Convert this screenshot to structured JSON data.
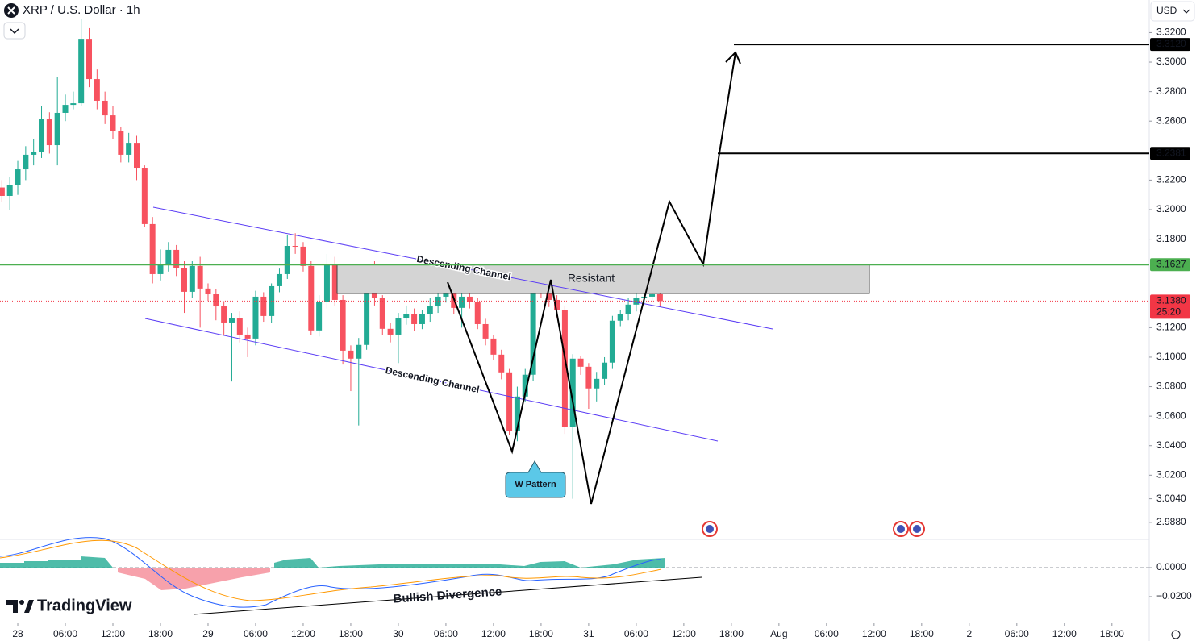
{
  "header": {
    "symbol_title": "XRP / U.S. Dollar · 1h",
    "currency": "USD",
    "brand": "TradingView"
  },
  "annotations": {
    "upper_channel": "Descending Channel",
    "lower_channel": "Descending Channel",
    "zone": "Resistant",
    "pattern": "W Pattern",
    "divergence": "Bullish Divergence"
  },
  "chart_data": {
    "type": "candlestick",
    "up_color": "#22ab94",
    "down_color": "#f7525f",
    "x": [
      -2,
      -1,
      0,
      1,
      2,
      3,
      4,
      5,
      6,
      7,
      8,
      9,
      10,
      11,
      12,
      13,
      14,
      15,
      16,
      17,
      18,
      19,
      20,
      21,
      22,
      23,
      24,
      25,
      26,
      27,
      28,
      29,
      30,
      31,
      32,
      33,
      34,
      35,
      36,
      37,
      38,
      39,
      40,
      41,
      42,
      43,
      44,
      45,
      46,
      47,
      48,
      49,
      50,
      51,
      52,
      53,
      54,
      55,
      56,
      57,
      58,
      59,
      60,
      61,
      62,
      63,
      64,
      65,
      66,
      67,
      68,
      69,
      70,
      71,
      72,
      73,
      74,
      75,
      76,
      77,
      78,
      79,
      80,
      81
    ],
    "open": [
      3.215,
      3.2093,
      3.2164,
      3.2273,
      3.2372,
      3.2393,
      3.2612,
      3.2437,
      3.2656,
      3.271,
      3.2721,
      3.3158,
      3.2885,
      3.2738,
      3.2639,
      3.2535,
      3.2372,
      3.2453,
      3.2284,
      3.1902,
      3.1563,
      3.1629,
      3.1727,
      3.1601,
      3.1443,
      3.1618,
      3.1465,
      3.1426,
      3.1344,
      3.1235,
      3.1262,
      3.1153,
      3.1126,
      3.141,
      3.1279,
      3.1481,
      3.1563,
      3.1754,
      3.1749,
      3.1618,
      3.1181,
      3.1372,
      3.1629,
      3.1388,
      3.1044,
      3.099,
      3.1083,
      3.1498,
      3.1399,
      3.1192,
      3.1153,
      3.1262,
      3.129,
      3.1224,
      3.129,
      3.1344,
      3.141,
      3.1454,
      3.1334,
      3.141,
      3.1372,
      3.1224,
      3.1126,
      3.1017,
      3.0897,
      3.0499,
      3.0733,
      3.0881,
      3.1498,
      3.1454,
      3.1388,
      3.1317,
      3.0526,
      3.099,
      3.0935,
      3.0788,
      3.0853,
      3.0963,
      3.1247,
      3.129,
      3.1356,
      3.1399,
      3.141,
      3.1426
    ],
    "high": [
      3.22,
      3.222,
      3.233,
      3.243,
      3.248,
      3.27,
      3.266,
      3.29,
      3.278,
      3.28,
      3.329,
      3.323,
      3.295,
      3.28,
      3.27,
      3.256,
      3.252,
      3.25,
      3.23,
      3.195,
      3.173,
      3.178,
      3.176,
      3.165,
      3.165,
      3.168,
      3.15,
      3.146,
      3.138,
      3.13,
      3.131,
      3.12,
      3.145,
      3.144,
      3.15,
      3.16,
      3.183,
      3.184,
      3.178,
      3.165,
      3.142,
      3.17,
      3.168,
      3.142,
      3.108,
      3.113,
      3.156,
      3.165,
      3.142,
      3.123,
      3.13,
      3.135,
      3.133,
      3.132,
      3.14,
      3.146,
      3.152,
      3.15,
      3.144,
      3.145,
      3.14,
      3.126,
      3.115,
      3.105,
      3.092,
      3.08,
      3.092,
      3.154,
      3.153,
      3.1627,
      3.142,
      3.135,
      3.102,
      3.101,
      3.096,
      3.09,
      3.1,
      3.128,
      3.132,
      3.14,
      3.145,
      3.146,
      3.147,
      3.144
    ],
    "low": [
      3.205,
      3.2,
      3.21,
      3.22,
      3.23,
      3.235,
      3.238,
      3.23,
      3.26,
      3.268,
      3.27,
      3.283,
      3.268,
      3.258,
      3.248,
      3.232,
      3.232,
      3.22,
      3.188,
      3.15,
      3.152,
      3.158,
      3.155,
      3.13,
      3.14,
      3.12,
      3.138,
      3.125,
      3.115,
      3.0835,
      3.11,
      3.1,
      3.108,
      3.124,
      3.123,
      3.144,
      3.153,
      3.17,
      3.158,
      3.115,
      3.114,
      3.133,
      3.135,
      3.095,
      3.077,
      3.0537,
      3.105,
      3.135,
      3.115,
      3.11,
      3.096,
      3.122,
      3.118,
      3.119,
      3.124,
      3.13,
      3.137,
      3.129,
      3.12,
      3.133,
      3.119,
      3.108,
      3.098,
      3.085,
      3.047,
      3.043,
      3.07,
      3.084,
      3.14,
      3.134,
      3.127,
      3.048,
      3.004,
      3.088,
      3.065,
      3.07,
      3.081,
      3.092,
      3.121,
      3.125,
      3.131,
      3.136,
      3.137,
      3.134
    ],
    "close": [
      3.2093,
      3.2164,
      3.2273,
      3.2372,
      3.2393,
      3.2612,
      3.2437,
      3.2656,
      3.271,
      3.2721,
      3.3158,
      3.2885,
      3.2738,
      3.2639,
      3.2535,
      3.2372,
      3.2453,
      3.2284,
      3.1902,
      3.1563,
      3.1629,
      3.1727,
      3.1601,
      3.1443,
      3.1618,
      3.1465,
      3.1426,
      3.1344,
      3.1235,
      3.1262,
      3.1153,
      3.1126,
      3.141,
      3.1279,
      3.1481,
      3.1563,
      3.1754,
      3.1749,
      3.1618,
      3.1181,
      3.1372,
      3.1629,
      3.1388,
      3.1044,
      3.099,
      3.1083,
      3.1498,
      3.1399,
      3.1192,
      3.1153,
      3.1262,
      3.129,
      3.1224,
      3.129,
      3.1344,
      3.141,
      3.1454,
      3.1334,
      3.141,
      3.1372,
      3.1224,
      3.1126,
      3.1017,
      3.0897,
      3.0499,
      3.0733,
      3.0881,
      3.1498,
      3.1454,
      3.1388,
      3.1317,
      3.0526,
      3.099,
      3.0935,
      3.0788,
      3.0853,
      3.0963,
      3.1247,
      3.129,
      3.1356,
      3.1399,
      3.141,
      3.1426,
      3.138
    ],
    "xlim": [
      -2.24,
      142.7
    ],
    "ylim": [
      2.977,
      3.3421
    ],
    "xticks": [
      {
        "value": 0,
        "label": "28"
      },
      {
        "value": 6,
        "label": "06:00"
      },
      {
        "value": 12,
        "label": "12:00"
      },
      {
        "value": 18,
        "label": "18:00"
      },
      {
        "value": 24,
        "label": "29"
      },
      {
        "value": 30,
        "label": "06:00"
      },
      {
        "value": 36,
        "label": "12:00"
      },
      {
        "value": 42,
        "label": "18:00"
      },
      {
        "value": 48,
        "label": "30"
      },
      {
        "value": 54,
        "label": "06:00"
      },
      {
        "value": 60,
        "label": "12:00"
      },
      {
        "value": 66,
        "label": "18:00"
      },
      {
        "value": 72,
        "label": "31"
      },
      {
        "value": 78,
        "label": "06:00"
      },
      {
        "value": 84,
        "label": "12:00"
      },
      {
        "value": 90,
        "label": "18:00"
      },
      {
        "value": 96,
        "label": "Aug"
      },
      {
        "value": 102,
        "label": "06:00"
      },
      {
        "value": 108,
        "label": "12:00"
      },
      {
        "value": 114,
        "label": "18:00"
      },
      {
        "value": 120,
        "label": "2"
      },
      {
        "value": 126,
        "label": "06:00"
      },
      {
        "value": 132,
        "label": "12:00"
      },
      {
        "value": 138,
        "label": "18:00"
      }
    ],
    "yticks": [
      {
        "value": 3.32,
        "label": "3.3200"
      },
      {
        "value": 3.3,
        "label": "3.3000"
      },
      {
        "value": 3.28,
        "label": "3.2800"
      },
      {
        "value": 3.26,
        "label": "3.2600"
      },
      {
        "value": 3.22,
        "label": "3.2200"
      },
      {
        "value": 3.2,
        "label": "3.2000"
      },
      {
        "value": 3.18,
        "label": "3.1800"
      },
      {
        "value": 3.12,
        "label": "3.1200"
      },
      {
        "value": 3.1,
        "label": "3.1000"
      },
      {
        "value": 3.08,
        "label": "3.0800"
      },
      {
        "value": 3.06,
        "label": "3.0600"
      },
      {
        "value": 3.04,
        "label": "3.0400"
      },
      {
        "value": 3.02,
        "label": "3.0200"
      },
      {
        "value": 3.004,
        "label": "3.0040"
      },
      {
        "value": 2.988,
        "label": "2.9880"
      }
    ],
    "levels": [
      {
        "value": 3.312,
        "label": "3.3120",
        "color": "#000000"
      },
      {
        "value": 3.2381,
        "label": "3.2381",
        "color": "#000000"
      },
      {
        "value": 3.1627,
        "label": "3.1627",
        "color": "#4caf50"
      }
    ],
    "current_price": {
      "value": 3.138,
      "label": "3.1380",
      "countdown": "25:20",
      "color": "#f23645"
    },
    "macd": {
      "ylim": [
        -0.0367,
        0.0189
      ],
      "yticks": [
        {
          "value": 0,
          "label": "0.0000"
        },
        {
          "value": -0.02,
          "label": "−0.0200"
        }
      ]
    }
  }
}
